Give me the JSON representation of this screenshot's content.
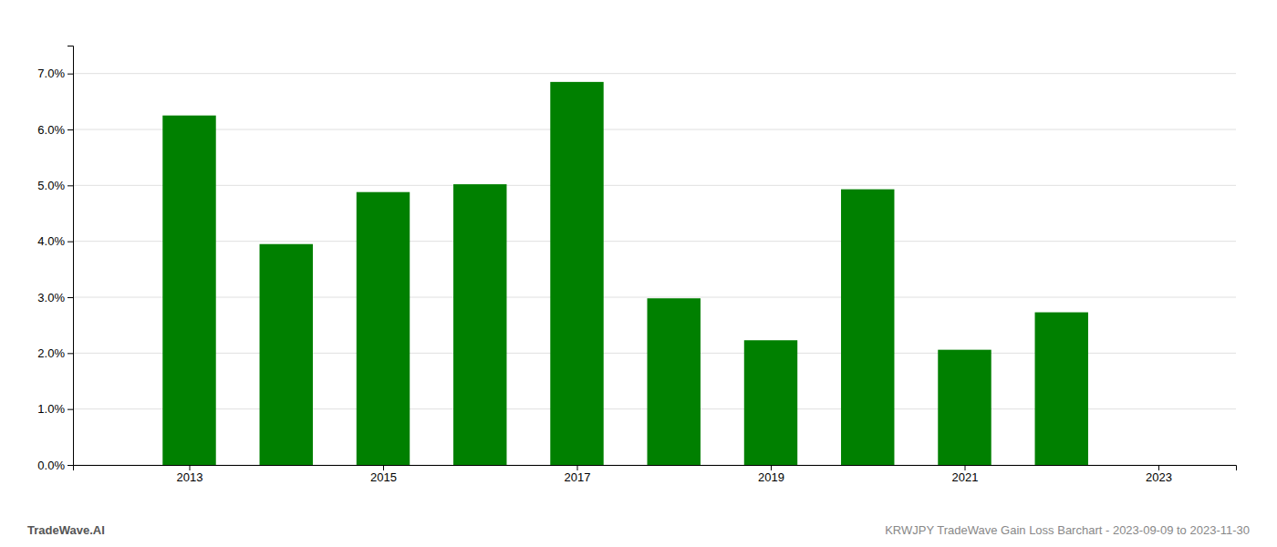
{
  "chart_data": {
    "type": "bar",
    "x": [
      2013,
      2014,
      2015,
      2016,
      2017,
      2018,
      2019,
      2020,
      2021,
      2022
    ],
    "values": [
      0.0625,
      0.0395,
      0.0488,
      0.0502,
      0.0685,
      0.0298,
      0.0223,
      0.0493,
      0.0206,
      0.0273
    ],
    "color": "#008000",
    "xlim": [
      2011.8,
      2023.8
    ],
    "xticks": [
      2013,
      2015,
      2017,
      2019,
      2021,
      2023
    ],
    "ylim": [
      0.0,
      0.075
    ],
    "yticks": [
      {
        "value": 0.0,
        "label": "0.0%"
      },
      {
        "value": 0.01,
        "label": "1.0%"
      },
      {
        "value": 0.02,
        "label": "2.0%"
      },
      {
        "value": 0.03,
        "label": "3.0%"
      },
      {
        "value": 0.04,
        "label": "4.0%"
      },
      {
        "value": 0.05,
        "label": "5.0%"
      },
      {
        "value": 0.06,
        "label": "6.0%"
      },
      {
        "value": 0.07,
        "label": "7.0%"
      }
    ],
    "grid": true,
    "annotations": [
      "TradeWave.AI",
      "KRWJPY TradeWave Gain Loss Barchart - 2023-09-09 to 2023-11-30"
    ]
  }
}
